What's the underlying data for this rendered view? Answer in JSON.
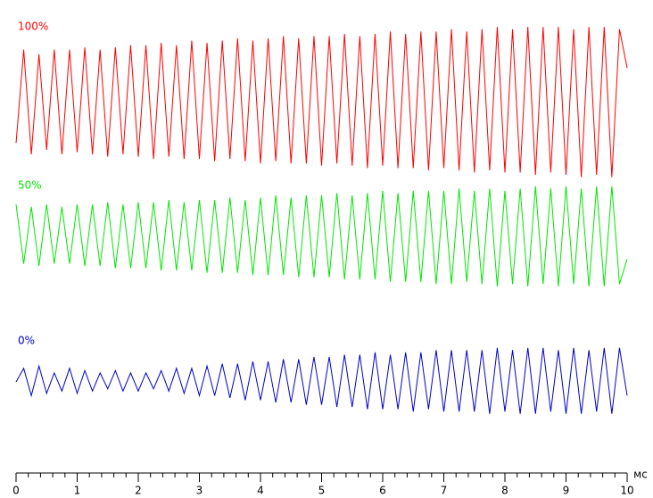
{
  "chart_data": {
    "type": "line",
    "xlabel": "мс",
    "x": [
      0,
      0.125,
      0.25,
      0.375,
      0.5,
      0.625,
      0.75,
      0.875,
      1,
      1.125,
      1.25,
      1.375,
      1.5,
      1.625,
      1.75,
      1.875,
      2,
      2.125,
      2.25,
      2.375,
      2.5,
      2.625,
      2.75,
      2.875,
      3,
      3.125,
      3.25,
      3.375,
      3.5,
      3.625,
      3.75,
      3.875,
      4,
      4.125,
      4.25,
      4.375,
      4.5,
      4.625,
      4.75,
      4.875,
      5,
      5.125,
      5.25,
      5.375,
      5.5,
      5.625,
      5.75,
      5.875,
      6,
      6.125,
      6.25,
      6.375,
      6.5,
      6.625,
      6.75,
      6.875,
      7,
      7.125,
      7.25,
      7.375,
      7.5,
      7.625,
      7.75,
      7.875,
      8,
      8.125,
      8.25,
      8.375,
      8.5,
      8.625,
      8.75,
      8.875,
      9,
      9.125,
      9.25,
      9.375,
      9.5,
      9.625,
      9.75,
      9.875,
      10
    ],
    "series": [
      {
        "name": "100%",
        "color": "#ff0000",
        "values": [
          7.25,
          9.3,
          7.0,
          9.2,
          7.1,
          9.3,
          7.0,
          9.3,
          7.05,
          9.35,
          7.0,
          9.3,
          6.95,
          9.35,
          7.0,
          9.4,
          6.95,
          9.4,
          6.9,
          9.45,
          6.95,
          9.4,
          6.9,
          9.5,
          6.9,
          9.45,
          6.85,
          9.5,
          6.9,
          9.55,
          6.85,
          9.5,
          6.8,
          9.55,
          6.85,
          9.6,
          6.8,
          9.55,
          6.8,
          9.6,
          6.75,
          9.6,
          6.8,
          9.65,
          6.75,
          9.6,
          6.7,
          9.65,
          6.75,
          9.7,
          6.7,
          9.65,
          6.7,
          9.7,
          6.65,
          9.7,
          6.7,
          9.75,
          6.65,
          9.7,
          6.6,
          9.75,
          6.65,
          9.8,
          6.6,
          9.75,
          6.6,
          9.8,
          6.55,
          9.8,
          6.6,
          9.8,
          6.55,
          9.75,
          6.5,
          9.8,
          6.55,
          9.8,
          6.5,
          9.75,
          8.9
        ]
      },
      {
        "name": "50%",
        "color": "#00e600",
        "values": [
          5.9,
          4.6,
          5.85,
          4.55,
          5.9,
          4.6,
          5.85,
          4.6,
          5.9,
          4.55,
          5.9,
          4.55,
          5.95,
          4.5,
          5.9,
          4.5,
          5.95,
          4.5,
          5.95,
          4.45,
          6.0,
          4.45,
          5.95,
          4.45,
          6.0,
          4.4,
          6.0,
          4.4,
          6.05,
          4.4,
          6.0,
          4.35,
          6.05,
          4.35,
          6.1,
          4.35,
          6.05,
          4.3,
          6.1,
          4.3,
          6.1,
          4.3,
          6.15,
          4.25,
          6.1,
          4.25,
          6.15,
          4.25,
          6.2,
          4.2,
          6.15,
          4.2,
          6.2,
          4.2,
          6.2,
          4.15,
          6.2,
          4.15,
          6.25,
          4.2,
          6.2,
          4.15,
          6.25,
          4.1,
          6.2,
          4.15,
          6.25,
          4.1,
          6.3,
          4.15,
          6.25,
          4.1,
          6.3,
          4.15,
          6.25,
          4.1,
          6.3,
          4.1,
          6.3,
          4.15,
          4.7
        ]
      },
      {
        "name": "0%",
        "color": "#0000cc",
        "values": [
          2.0,
          2.3,
          1.7,
          2.35,
          1.75,
          2.2,
          1.8,
          2.3,
          1.75,
          2.25,
          1.8,
          2.2,
          1.85,
          2.25,
          1.8,
          2.2,
          1.8,
          2.2,
          1.85,
          2.25,
          1.8,
          2.3,
          1.75,
          2.3,
          1.7,
          2.35,
          1.7,
          2.4,
          1.65,
          2.4,
          1.6,
          2.45,
          1.6,
          2.45,
          1.55,
          2.5,
          1.55,
          2.5,
          1.5,
          2.55,
          1.5,
          2.55,
          1.45,
          2.6,
          1.45,
          2.6,
          1.4,
          2.65,
          1.4,
          2.6,
          1.4,
          2.65,
          1.35,
          2.65,
          1.4,
          2.7,
          1.35,
          2.7,
          1.35,
          2.7,
          1.35,
          2.7,
          1.3,
          2.75,
          1.35,
          2.7,
          1.3,
          2.75,
          1.3,
          2.75,
          1.35,
          2.7,
          1.3,
          2.75,
          1.3,
          2.7,
          1.35,
          2.75,
          1.3,
          2.75,
          1.7
        ]
      }
    ],
    "xlim": [
      0,
      10
    ],
    "xticks": [
      0,
      1,
      2,
      3,
      4,
      5,
      6,
      7,
      8,
      9,
      10
    ],
    "minor_tick_step": 0.2,
    "ylim": [
      0,
      10
    ],
    "grid": false
  }
}
